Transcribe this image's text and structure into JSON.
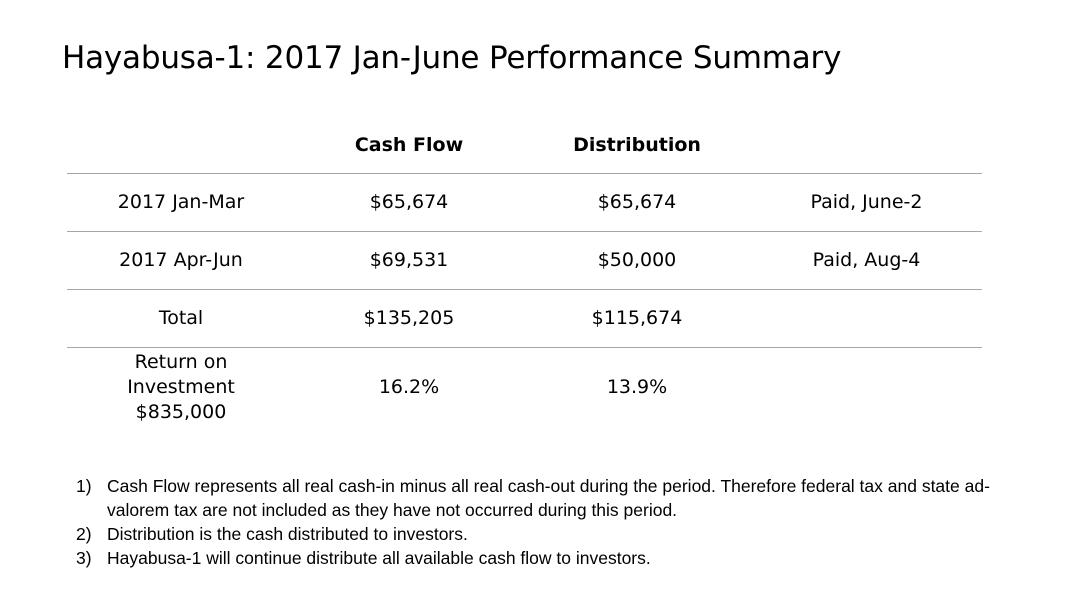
{
  "title": "Hayabusa-1: 2017 Jan-June Performance Summary",
  "table": {
    "headers": [
      "",
      "Cash Flow",
      "Distribution",
      ""
    ],
    "rows": [
      {
        "label": "2017 Jan-Mar",
        "cash_flow": "$65,674",
        "distribution": "$65,674",
        "status": "Paid, June-2"
      },
      {
        "label": "2017 Apr-Jun",
        "cash_flow": "$69,531",
        "distribution": "$50,000",
        "status": "Paid, Aug-4"
      },
      {
        "label": "Total",
        "cash_flow": "$135,205",
        "distribution": "$115,674",
        "status": ""
      }
    ],
    "roi": {
      "label_line1": "Return on",
      "label_line2": "Investment",
      "label_line3": "$835,000",
      "cash_flow": "16.2%",
      "distribution": "13.9%"
    }
  },
  "notes": [
    {
      "num": "1)",
      "text": "Cash Flow represents all real cash-in minus all real cash-out during the period. Therefore federal tax and state ad-valorem tax are not included as they have not occurred during this period."
    },
    {
      "num": "2)",
      "text": "Distribution is the cash distributed to investors."
    },
    {
      "num": "3)",
      "text": "Hayabusa-1 will continue distribute all available cash flow to investors."
    }
  ]
}
